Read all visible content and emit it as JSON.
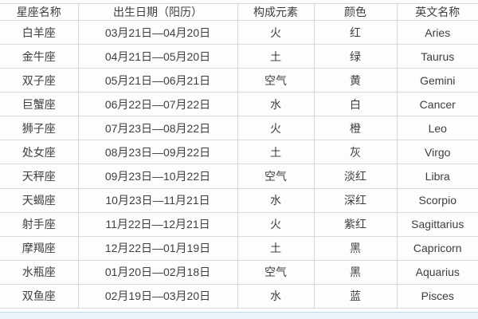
{
  "colors": {
    "background": "#fdfdfd",
    "grid": "#d8dbdb",
    "text": "#3e3e3e",
    "strip_bg": "#e9f5f9",
    "strip_border": "#bcdde8"
  },
  "chart_data": {
    "type": "table",
    "title": "",
    "columns": [
      "星座名称",
      "出生日期（阳历）",
      "构成元素",
      "颜色",
      "英文名称"
    ],
    "rows": [
      {
        "name": "白羊座",
        "date": "03月21日—04月20日",
        "element": "火",
        "color": "红",
        "english": "Aries"
      },
      {
        "name": "金牛座",
        "date": "04月21日—05月20日",
        "element": "土",
        "color": "绿",
        "english": "Taurus"
      },
      {
        "name": "双子座",
        "date": "05月21日—06月21日",
        "element": "空气",
        "color": "黄",
        "english": "Gemini"
      },
      {
        "name": "巨蟹座",
        "date": "06月22日—07月22日",
        "element": "水",
        "color": "白",
        "english": "Cancer"
      },
      {
        "name": "狮子座",
        "date": "07月23日—08月22日",
        "element": "火",
        "color": "橙",
        "english": "Leo"
      },
      {
        "name": "处女座",
        "date": "08月23日—09月22日",
        "element": "土",
        "color": "灰",
        "english": "Virgo"
      },
      {
        "name": "天秤座",
        "date": "09月23日—10月22日",
        "element": "空气",
        "color": "淡红",
        "english": "Libra"
      },
      {
        "name": "天蝎座",
        "date": "10月23日—11月21日",
        "element": "水",
        "color": "深红",
        "english": "Scorpio"
      },
      {
        "name": "射手座",
        "date": "11月22日—12月21日",
        "element": "火",
        "color": "紫红",
        "english": "Sagittarius"
      },
      {
        "name": "摩羯座",
        "date": "12月22日—01月19日",
        "element": "土",
        "color": "黑",
        "english": "Capricorn"
      },
      {
        "name": "水瓶座",
        "date": "01月20日—02月18日",
        "element": "空气",
        "color": "黑",
        "english": "Aquarius"
      },
      {
        "name": "双鱼座",
        "date": "02月19日—03月20日",
        "element": "水",
        "color": "蓝",
        "english": "Pisces"
      }
    ]
  }
}
